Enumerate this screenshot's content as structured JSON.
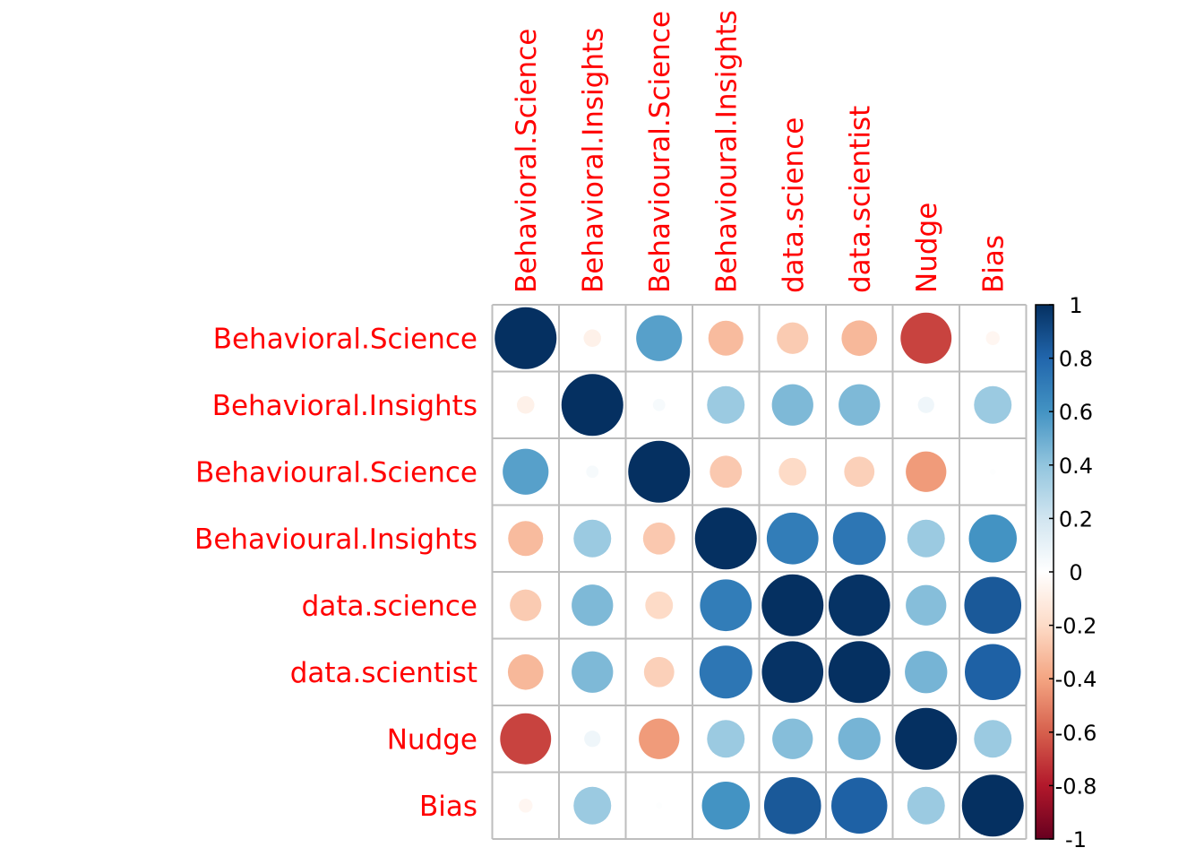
{
  "chart_data": {
    "type": "heatmap",
    "subtype": "correlation-circle-matrix",
    "variables": [
      "Behavioral.Science",
      "Behavioral.Insights",
      "Behavioural.Science",
      "Behavioural.Insights",
      "data.science",
      "data.scientist",
      "Nudge",
      "Bias"
    ],
    "matrix": [
      [
        1.0,
        -0.08,
        0.55,
        -0.32,
        -0.26,
        -0.33,
        -0.68,
        -0.05
      ],
      [
        -0.08,
        1.0,
        0.04,
        0.37,
        0.45,
        0.45,
        0.07,
        0.37
      ],
      [
        0.55,
        0.04,
        1.0,
        -0.27,
        -0.2,
        -0.24,
        -0.43,
        0.01
      ],
      [
        -0.32,
        0.37,
        -0.27,
        1.0,
        0.7,
        0.73,
        0.37,
        0.6
      ],
      [
        -0.26,
        0.45,
        -0.2,
        0.7,
        1.0,
        0.99,
        0.43,
        0.85
      ],
      [
        -0.33,
        0.45,
        -0.24,
        0.73,
        0.99,
        1.0,
        0.47,
        0.82
      ],
      [
        -0.68,
        0.07,
        -0.43,
        0.37,
        0.43,
        0.47,
        1.0,
        0.37
      ],
      [
        -0.05,
        0.37,
        0.01,
        0.6,
        0.85,
        0.82,
        0.37,
        1.0
      ]
    ],
    "colorbar": {
      "range": [
        -1,
        1
      ],
      "ticks": [
        "1",
        "0.8",
        "0.6",
        "0.4",
        "0.2",
        "0",
        "-0.2",
        "-0.4",
        "-0.6",
        "-0.8",
        "-1"
      ],
      "colors": [
        "#67001F",
        "#B2182B",
        "#D6604D",
        "#F4A582",
        "#FDDBC7",
        "#FFFFFF",
        "#D1E5F0",
        "#92C5DE",
        "#4393C3",
        "#2166AC",
        "#053061"
      ]
    },
    "label_color": "#FF0000",
    "grid": true,
    "legend_position": "right"
  }
}
